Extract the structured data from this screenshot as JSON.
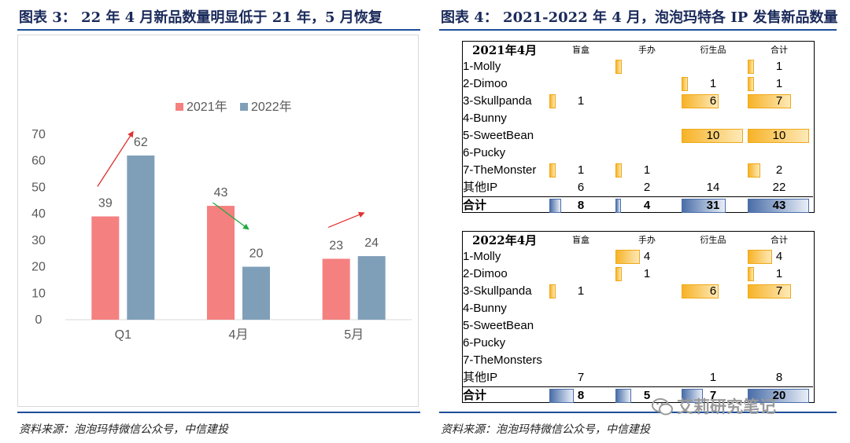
{
  "left_figure": {
    "title": "图表 3： 22 年 4 月新品数量明显低于 21 年，5 月恢复",
    "source": "资料来源：泡泡玛特微信公众号，中信建投"
  },
  "right_figure": {
    "title": "图表 4： 2021-2022 年 4 月，泡泡玛特各 IP 发售新品数量",
    "source": "资料来源：泡泡玛特微信公众号，中信建投"
  },
  "colors": {
    "s2021": "#f58080",
    "s2022": "#7f9fb9",
    "up_arrow": "#e03232",
    "down_arrow": "#22aa44",
    "data_bar_orange": "#f7b327",
    "data_bar_blue": "#4a6ea8",
    "rule_blue": "#1f4e9a"
  },
  "chart_data": [
    {
      "type": "bar",
      "categories": [
        "Q1",
        "4月",
        "5月"
      ],
      "series": [
        {
          "name": "2021年",
          "values": [
            39,
            43,
            23
          ]
        },
        {
          "name": "2022年",
          "values": [
            62,
            20,
            24
          ]
        }
      ],
      "ylim": [
        0,
        70
      ],
      "yticks": [
        "0",
        "10",
        "20",
        "30",
        "40",
        "50",
        "60",
        "70"
      ],
      "legend": "top-center",
      "grid": false,
      "annotations": [
        {
          "category": "Q1",
          "direction": "up",
          "color": "#e03232"
        },
        {
          "category": "4月",
          "direction": "down",
          "color": "#22aa44"
        },
        {
          "category": "5月",
          "direction": "up",
          "color": "#e03232"
        }
      ]
    },
    {
      "type": "table",
      "title": "2021年4月",
      "columns": [
        "盲盒",
        "手办",
        "衍生品",
        "合计"
      ],
      "rows": [
        {
          "label": "1-Molly",
          "values": [
            "",
            "",
            "",
            "1"
          ],
          "bars": [
            0,
            1,
            0,
            1
          ]
        },
        {
          "label": "2-Dimoo",
          "values": [
            "",
            "",
            "1",
            "1"
          ],
          "bars": [
            0,
            0,
            1,
            1
          ]
        },
        {
          "label": "3-Skullpanda",
          "values": [
            "1",
            "",
            "6",
            "7"
          ],
          "bars": [
            1,
            0,
            6,
            7
          ]
        },
        {
          "label": "4-Bunny",
          "values": [
            "",
            "",
            "",
            ""
          ],
          "bars": [
            0,
            0,
            0,
            0
          ]
        },
        {
          "label": "5-SweetBean",
          "values": [
            "",
            "",
            "10",
            "10"
          ],
          "bars": [
            0,
            0,
            10,
            10
          ]
        },
        {
          "label": "6-Pucky",
          "values": [
            "",
            "",
            "",
            ""
          ],
          "bars": [
            0,
            0,
            0,
            0
          ]
        },
        {
          "label": "7-TheMonster",
          "values": [
            "1",
            "1",
            "",
            "2"
          ],
          "bars": [
            1,
            1,
            0,
            2
          ]
        },
        {
          "label": "其他IP",
          "values": [
            "6",
            "2",
            "14",
            "22"
          ],
          "bars": [
            0,
            0,
            0,
            0
          ]
        }
      ],
      "total": {
        "label": "合计",
        "values": [
          "8",
          "4",
          "31",
          "43"
        ]
      }
    },
    {
      "type": "table",
      "title": "2022年4月",
      "columns": [
        "盲盒",
        "手办",
        "衍生品",
        "合计"
      ],
      "rows": [
        {
          "label": "1-Molly",
          "values": [
            "",
            "4",
            "",
            "4"
          ],
          "bars": [
            0,
            4,
            0,
            4
          ]
        },
        {
          "label": "2-Dimoo",
          "values": [
            "",
            "1",
            "",
            "1"
          ],
          "bars": [
            0,
            1,
            0,
            1
          ]
        },
        {
          "label": "3-Skullpanda",
          "values": [
            "1",
            "",
            "6",
            "7"
          ],
          "bars": [
            1,
            0,
            6,
            7
          ]
        },
        {
          "label": "4-Bunny",
          "values": [
            "",
            "",
            "",
            ""
          ],
          "bars": [
            0,
            0,
            0,
            0
          ]
        },
        {
          "label": "5-SweetBean",
          "values": [
            "",
            "",
            "",
            ""
          ],
          "bars": [
            0,
            0,
            0,
            0
          ]
        },
        {
          "label": "6-Pucky",
          "values": [
            "",
            "",
            "",
            ""
          ],
          "bars": [
            0,
            0,
            0,
            0
          ]
        },
        {
          "label": "7-TheMonsters",
          "values": [
            "",
            "",
            "",
            ""
          ],
          "bars": [
            0,
            0,
            0,
            0
          ]
        },
        {
          "label": "其他IP",
          "values": [
            "7",
            "",
            "1",
            "8"
          ],
          "bars": [
            0,
            0,
            0,
            0
          ]
        }
      ],
      "total": {
        "label": "合计",
        "values": [
          "8",
          "5",
          "7",
          "20"
        ]
      }
    }
  ],
  "watermark": {
    "text": "艾莉研究笔记",
    "icon": "wechat-icon"
  }
}
